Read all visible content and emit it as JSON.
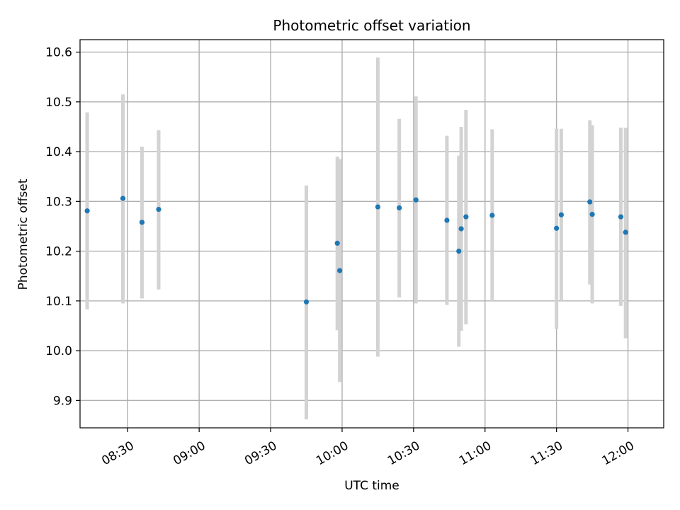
{
  "chart_data": {
    "type": "scatter",
    "title": "Photometric offset variation",
    "xlabel": "UTC time",
    "ylabel": "Photometric offset",
    "grid": true,
    "x_unit": "time of day (UTC)",
    "xlim": [
      "08:10",
      "12:15"
    ],
    "ylim": [
      9.845,
      10.625
    ],
    "x_ticks": [
      "08:30",
      "09:00",
      "09:30",
      "10:00",
      "10:30",
      "11:00",
      "11:30",
      "12:00"
    ],
    "y_ticks": [
      9.9,
      10.0,
      10.1,
      10.2,
      10.3,
      10.4,
      10.5,
      10.6
    ],
    "y_tick_labels": [
      "9.9",
      "10.0",
      "10.1",
      "10.2",
      "10.3",
      "10.4",
      "10.5",
      "10.6"
    ],
    "marker_color": "#1f77b4",
    "errorbar_color": "#d3d3d3",
    "points": [
      {
        "x": "08:13",
        "y": 10.281,
        "ylo": 10.083,
        "yhi": 10.479
      },
      {
        "x": "08:28",
        "y": 10.306,
        "ylo": 10.095,
        "yhi": 10.515
      },
      {
        "x": "08:36",
        "y": 10.258,
        "ylo": 10.105,
        "yhi": 10.41
      },
      {
        "x": "08:43",
        "y": 10.284,
        "ylo": 10.123,
        "yhi": 10.443
      },
      {
        "x": "09:45",
        "y": 10.098,
        "ylo": 9.862,
        "yhi": 10.332
      },
      {
        "x": "09:58",
        "y": 10.216,
        "ylo": 10.041,
        "yhi": 10.39
      },
      {
        "x": "09:59",
        "y": 10.161,
        "ylo": 9.937,
        "yhi": 10.385
      },
      {
        "x": "10:15",
        "y": 10.289,
        "ylo": 9.988,
        "yhi": 10.589
      },
      {
        "x": "10:24",
        "y": 10.287,
        "ylo": 10.107,
        "yhi": 10.466
      },
      {
        "x": "10:31",
        "y": 10.303,
        "ylo": 10.095,
        "yhi": 10.511
      },
      {
        "x": "10:44",
        "y": 10.262,
        "ylo": 10.092,
        "yhi": 10.432
      },
      {
        "x": "10:49",
        "y": 10.2,
        "ylo": 10.008,
        "yhi": 10.392
      },
      {
        "x": "10:50",
        "y": 10.245,
        "ylo": 10.04,
        "yhi": 10.45
      },
      {
        "x": "10:52",
        "y": 10.269,
        "ylo": 10.053,
        "yhi": 10.484
      },
      {
        "x": "11:03",
        "y": 10.272,
        "ylo": 10.1,
        "yhi": 10.445
      },
      {
        "x": "11:30",
        "y": 10.246,
        "ylo": 10.044,
        "yhi": 10.446
      },
      {
        "x": "11:32",
        "y": 10.273,
        "ylo": 10.1,
        "yhi": 10.446
      },
      {
        "x": "11:44",
        "y": 10.299,
        "ylo": 10.133,
        "yhi": 10.463
      },
      {
        "x": "11:45",
        "y": 10.274,
        "ylo": 10.095,
        "yhi": 10.453
      },
      {
        "x": "11:57",
        "y": 10.269,
        "ylo": 10.09,
        "yhi": 10.448
      },
      {
        "x": "11:59",
        "y": 10.238,
        "ylo": 10.025,
        "yhi": 10.448
      }
    ]
  }
}
